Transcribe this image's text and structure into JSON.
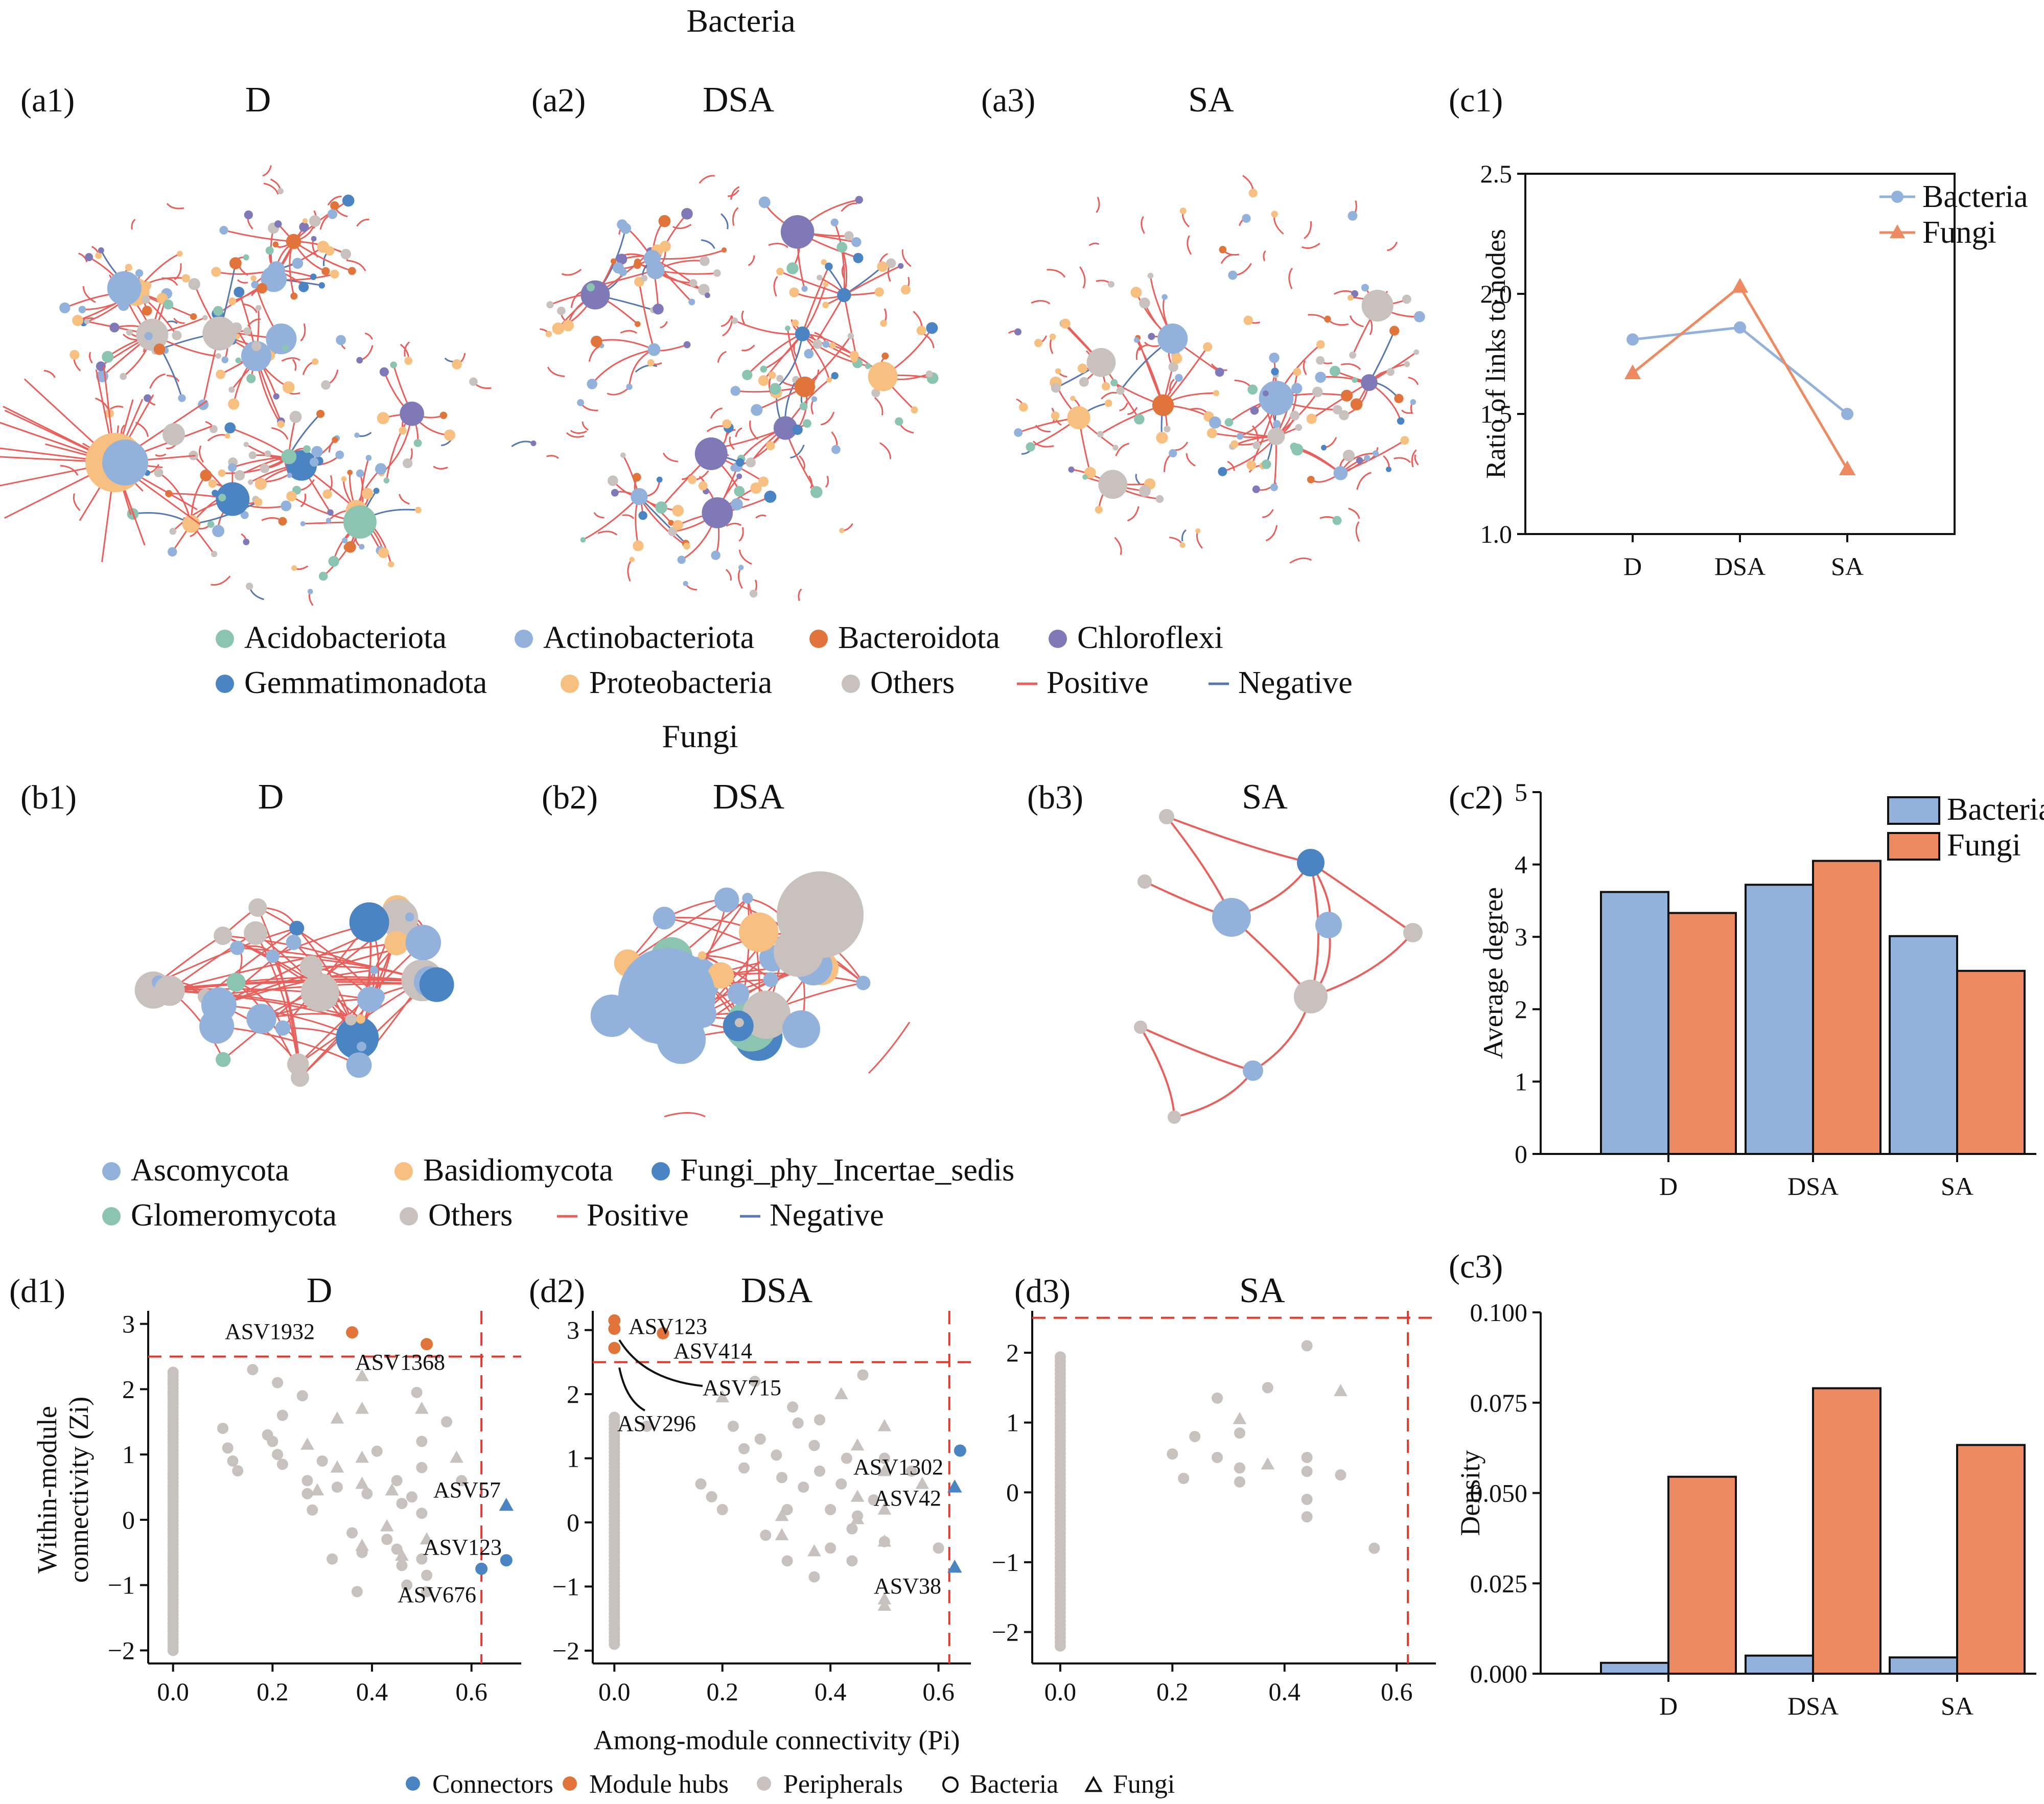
{
  "colors": {
    "bacteria": "#93b2db",
    "fungi": "#ee8a61",
    "connector": "#4a84c2",
    "hub": "#e0743a",
    "peripheral": "#c8c1bd",
    "positive": "#e8605b",
    "negative": "#5677b0",
    "acidobacteriota": "#8bc4b1",
    "actinobacteriota": "#93b2db",
    "bacteroidota": "#e0743a",
    "chloroflexi": "#7f79b8",
    "gemmatimonadota": "#4a84c2",
    "proteobacteria": "#f7bf80",
    "others": "#c8c1bd",
    "ascomycota": "#93b2db",
    "basidiomycota": "#f7bf80",
    "incertae": "#4a84c2",
    "glomeromycota": "#8bc4b1"
  },
  "sections": {
    "bacteria_title": "Bacteria",
    "fungi_title": "Fungi"
  },
  "networks": [
    {
      "id": "a1",
      "label": "(a1)",
      "title": "D"
    },
    {
      "id": "a2",
      "label": "(a2)",
      "title": "DSA"
    },
    {
      "id": "a3",
      "label": "(a3)",
      "title": "SA"
    },
    {
      "id": "b1",
      "label": "(b1)",
      "title": "D"
    },
    {
      "id": "b2",
      "label": "(b2)",
      "title": "DSA"
    },
    {
      "id": "b3",
      "label": "(b3)",
      "title": "SA"
    }
  ],
  "bacteria_legend": [
    {
      "name": "Acidobacteriota",
      "color_key": "acidobacteriota",
      "kind": "dot"
    },
    {
      "name": "Actinobacteriota",
      "color_key": "actinobacteriota",
      "kind": "dot"
    },
    {
      "name": "Bacteroidota",
      "color_key": "bacteroidota",
      "kind": "dot"
    },
    {
      "name": "Chloroflexi",
      "color_key": "chloroflexi",
      "kind": "dot"
    },
    {
      "name": "Gemmatimonadota",
      "color_key": "gemmatimonadota",
      "kind": "dot"
    },
    {
      "name": "Proteobacteria",
      "color_key": "proteobacteria",
      "kind": "dot"
    },
    {
      "name": "Others",
      "color_key": "others",
      "kind": "dot"
    },
    {
      "name": "Positive",
      "color_key": "positive",
      "kind": "line"
    },
    {
      "name": "Negative",
      "color_key": "negative",
      "kind": "line"
    }
  ],
  "fungi_legend": [
    {
      "name": "Ascomycota",
      "color_key": "ascomycota",
      "kind": "dot"
    },
    {
      "name": "Basidiomycota",
      "color_key": "basidiomycota",
      "kind": "dot"
    },
    {
      "name": "Fungi_phy_Incertae_sedis",
      "color_key": "incertae",
      "kind": "dot"
    },
    {
      "name": "Glomeromycota",
      "color_key": "glomeromycota",
      "kind": "dot"
    },
    {
      "name": "Others",
      "color_key": "others",
      "kind": "dot"
    },
    {
      "name": "Positive",
      "color_key": "positive",
      "kind": "line"
    },
    {
      "name": "Negative",
      "color_key": "negative",
      "kind": "line"
    }
  ],
  "zipi_legend": [
    {
      "name": "Connectors",
      "kind": "dot",
      "color_key": "connector"
    },
    {
      "name": "Module hubs",
      "kind": "dot",
      "color_key": "hub"
    },
    {
      "name": "Peripherals",
      "kind": "dot",
      "color_key": "peripheral"
    },
    {
      "name": "Bacteria",
      "kind": "circle"
    },
    {
      "name": "Fungi",
      "kind": "triangle"
    }
  ],
  "chart_data": [
    {
      "id": "c1",
      "label": "(c1)",
      "type": "line",
      "categories": [
        "D",
        "DSA",
        "SA"
      ],
      "series": [
        {
          "name": "Bacteria",
          "values": [
            1.81,
            1.86,
            1.5
          ],
          "marker": "circle",
          "color_key": "bacteria"
        },
        {
          "name": "Fungi",
          "values": [
            1.67,
            2.03,
            1.27
          ],
          "marker": "triangle",
          "color_key": "fungi"
        }
      ],
      "ylabel": "Ratio of links to nodes",
      "ylim": [
        1.0,
        2.5
      ],
      "yticks": [
        1.0,
        1.5,
        2.0,
        2.5
      ],
      "ytick_labels": [
        "1.0",
        "1.5",
        "2.0",
        "2.5"
      ],
      "legend": "top-right"
    },
    {
      "id": "c2",
      "label": "(c2)",
      "type": "bar",
      "categories": [
        "D",
        "DSA",
        "SA"
      ],
      "series": [
        {
          "name": "Bacteria",
          "values": [
            3.62,
            3.72,
            3.01
          ],
          "color_key": "bacteria"
        },
        {
          "name": "Fungi",
          "values": [
            3.33,
            4.05,
            2.53
          ],
          "color_key": "fungi"
        }
      ],
      "ylabel": "Average degree",
      "ylim": [
        0,
        5
      ],
      "yticks": [
        0,
        1,
        2,
        3,
        4,
        5
      ],
      "ytick_labels": [
        "0",
        "1",
        "2",
        "3",
        "4",
        "5"
      ],
      "legend": "top-right"
    },
    {
      "id": "c3",
      "label": "(c3)",
      "type": "bar",
      "categories": [
        "D",
        "DSA",
        "SA"
      ],
      "series": [
        {
          "name": "Bacteria",
          "values": [
            0.003,
            0.005,
            0.0045
          ],
          "color_key": "bacteria"
        },
        {
          "name": "Fungi",
          "values": [
            0.0545,
            0.079,
            0.0633
          ],
          "color_key": "fungi"
        }
      ],
      "ylabel": "Density",
      "ylim": [
        0,
        0.1
      ],
      "yticks": [
        0,
        0.025,
        0.05,
        0.075,
        0.1
      ],
      "ytick_labels": [
        "0.000",
        "0.025",
        "0.050",
        "0.075",
        "0.100"
      ]
    },
    {
      "id": "d1",
      "label": "(d1)",
      "title": "D",
      "type": "scatter",
      "xlim": [
        -0.05,
        0.7
      ],
      "ylim": [
        -2.2,
        3.2
      ],
      "xticks": [
        0,
        0.2,
        0.4,
        0.6
      ],
      "xtick_labels": [
        "0.0",
        "0.2",
        "0.4",
        "0.6"
      ],
      "yticks": [
        -2,
        -1,
        0,
        1,
        2,
        3
      ],
      "ytick_labels": [
        "−2",
        "−1",
        "0",
        "1",
        "2",
        "3"
      ],
      "xlabel": "",
      "ylabel": "Within-module connectivity (Zi)",
      "ylabel_lines": [
        "Within-module",
        "connectivity (Zi)"
      ],
      "thresholds": {
        "zi": 2.5,
        "pi": 0.62
      },
      "highlighted": [
        {
          "name": "ASV1932",
          "pi": 0.36,
          "zi": 2.87,
          "role": "hub",
          "taxon": "bacteria"
        },
        {
          "name": "ASV1368",
          "pi": 0.51,
          "zi": 2.69,
          "role": "hub",
          "taxon": "bacteria"
        },
        {
          "name": "ASV57",
          "pi": 0.67,
          "zi": 0.22,
          "role": "connector",
          "taxon": "fungi"
        },
        {
          "name": "ASV123",
          "pi": 0.67,
          "zi": -0.62,
          "role": "connector",
          "taxon": "bacteria"
        },
        {
          "name": "ASV676",
          "pi": 0.62,
          "zi": -0.75,
          "role": "connector",
          "taxon": "bacteria"
        }
      ],
      "peripherals_bacteria": [
        [
          0.1,
          1.4
        ],
        [
          0.11,
          1.1
        ],
        [
          0.12,
          0.9
        ],
        [
          0.13,
          0.75
        ],
        [
          0.16,
          2.3
        ],
        [
          0.19,
          1.3
        ],
        [
          0.2,
          1.2
        ],
        [
          0.21,
          1.0
        ],
        [
          0.21,
          2.1
        ],
        [
          0.22,
          1.6
        ],
        [
          0.22,
          0.85
        ],
        [
          0.26,
          1.9
        ],
        [
          0.27,
          0.6
        ],
        [
          0.27,
          0.4
        ],
        [
          0.28,
          0.15
        ],
        [
          0.32,
          -0.6
        ],
        [
          0.33,
          0.5
        ],
        [
          0.36,
          -0.2
        ],
        [
          0.37,
          -1.1
        ],
        [
          0.39,
          0.4
        ],
        [
          0.41,
          1.05
        ],
        [
          0.43,
          -0.3
        ],
        [
          0.45,
          0.6
        ],
        [
          0.45,
          -0.45
        ],
        [
          0.46,
          -0.7
        ],
        [
          0.47,
          -1.0
        ],
        [
          0.49,
          1.95
        ],
        [
          0.5,
          1.2
        ],
        [
          0.5,
          0.8
        ],
        [
          0.5,
          0.1
        ],
        [
          0.5,
          -0.6
        ],
        [
          0.51,
          -0.85
        ],
        [
          0.51,
          -1.1
        ],
        [
          0.55,
          1.5
        ],
        [
          0.58,
          0.6
        ],
        [
          0.46,
          0.25
        ],
        [
          0.38,
          -0.5
        ],
        [
          0.48,
          0.35
        ],
        [
          0.3,
          0.9
        ]
      ],
      "peripherals_fungi": [
        [
          0.27,
          1.15
        ],
        [
          0.33,
          1.55
        ],
        [
          0.33,
          0.8
        ],
        [
          0.38,
          2.2
        ],
        [
          0.38,
          1.7
        ],
        [
          0.38,
          0.95
        ],
        [
          0.38,
          0.55
        ],
        [
          0.38,
          -0.4
        ],
        [
          0.46,
          -0.55
        ],
        [
          0.5,
          1.7
        ],
        [
          0.51,
          -0.3
        ],
        [
          0.57,
          0.95
        ],
        [
          0.43,
          -0.1
        ],
        [
          0.29,
          0.45
        ],
        [
          0.44,
          0.45
        ]
      ],
      "peripheral_zero_range": [
        -2.0,
        2.3
      ]
    },
    {
      "id": "d2",
      "label": "(d2)",
      "title": "DSA",
      "type": "scatter",
      "xlim": [
        -0.04,
        0.66
      ],
      "ylim": [
        -2.2,
        3.3
      ],
      "xticks": [
        0,
        0.2,
        0.4,
        0.6
      ],
      "xtick_labels": [
        "0.0",
        "0.2",
        "0.4",
        "0.6"
      ],
      "yticks": [
        -2,
        -1,
        0,
        1,
        2,
        3
      ],
      "ytick_labels": [
        "−2",
        "−1",
        "0",
        "1",
        "2",
        "3"
      ],
      "xlabel": "Among-module connectivity (Pi)",
      "thresholds": {
        "zi": 2.5,
        "pi": 0.62
      },
      "highlighted": [
        {
          "name": "ASV123",
          "pi": 0.0,
          "zi": 3.15,
          "role": "hub",
          "taxon": "bacteria"
        },
        {
          "name": "ASV414",
          "pi": 0.09,
          "zi": 2.95,
          "role": "hub",
          "taxon": "bacteria"
        },
        {
          "name": "ASV715",
          "pi": 0.0,
          "zi": 3.02,
          "role": "hub",
          "taxon": "bacteria"
        },
        {
          "name": "ASV296",
          "pi": 0.0,
          "zi": 2.72,
          "role": "hub",
          "taxon": "bacteria"
        },
        {
          "name": "ASV1302",
          "pi": 0.64,
          "zi": 1.12,
          "role": "connector",
          "taxon": "bacteria"
        },
        {
          "name": "ASV42",
          "pi": 0.63,
          "zi": 0.55,
          "role": "connector",
          "taxon": "fungi"
        },
        {
          "name": "ASV38",
          "pi": 0.63,
          "zi": -0.7,
          "role": "connector",
          "taxon": "fungi"
        }
      ],
      "peripherals_bacteria": [
        [
          0.06,
          1.5
        ],
        [
          0.16,
          0.6
        ],
        [
          0.18,
          0.4
        ],
        [
          0.2,
          0.2
        ],
        [
          0.22,
          1.5
        ],
        [
          0.24,
          1.15
        ],
        [
          0.24,
          0.85
        ],
        [
          0.26,
          2.2
        ],
        [
          0.27,
          1.3
        ],
        [
          0.3,
          1.05
        ],
        [
          0.31,
          0.7
        ],
        [
          0.32,
          0.2
        ],
        [
          0.32,
          -0.6
        ],
        [
          0.33,
          1.8
        ],
        [
          0.35,
          0.55
        ],
        [
          0.37,
          1.2
        ],
        [
          0.37,
          -0.85
        ],
        [
          0.38,
          0.8
        ],
        [
          0.38,
          1.6
        ],
        [
          0.4,
          0.2
        ],
        [
          0.4,
          -0.4
        ],
        [
          0.42,
          0.6
        ],
        [
          0.43,
          1.0
        ],
        [
          0.44,
          -0.1
        ],
        [
          0.44,
          -0.6
        ],
        [
          0.46,
          2.3
        ],
        [
          0.48,
          0.35
        ],
        [
          0.5,
          1.0
        ],
        [
          0.5,
          -0.3
        ],
        [
          0.55,
          0.8
        ],
        [
          0.6,
          -0.4
        ],
        [
          0.28,
          -0.2
        ],
        [
          0.34,
          1.55
        ],
        [
          0.45,
          0.1
        ]
      ],
      "peripherals_fungi": [
        [
          0.2,
          1.95
        ],
        [
          0.31,
          -0.2
        ],
        [
          0.31,
          0.1
        ],
        [
          0.37,
          -0.45
        ],
        [
          0.42,
          2.0
        ],
        [
          0.45,
          1.2
        ],
        [
          0.45,
          0.4
        ],
        [
          0.45,
          0.05
        ],
        [
          0.5,
          1.5
        ],
        [
          0.5,
          0.8
        ],
        [
          0.5,
          0.2
        ],
        [
          0.5,
          -0.3
        ],
        [
          0.5,
          -1.3
        ],
        [
          0.5,
          -1.2
        ],
        [
          0.57,
          0.6
        ]
      ],
      "peripheral_zero_range": [
        -1.9,
        1.65
      ]
    },
    {
      "id": "d3",
      "label": "(d3)",
      "title": "SA",
      "type": "scatter",
      "xlim": [
        -0.05,
        0.67
      ],
      "ylim": [
        -2.45,
        2.6
      ],
      "xticks": [
        0,
        0.2,
        0.4,
        0.6
      ],
      "xtick_labels": [
        "0.0",
        "0.2",
        "0.4",
        "0.6"
      ],
      "yticks": [
        -2,
        -1,
        0,
        1,
        2
      ],
      "ytick_labels": [
        "−2",
        "−1",
        "0",
        "1",
        "2"
      ],
      "xlabel": "",
      "thresholds": {
        "zi": 2.5,
        "pi": 0.62
      },
      "highlighted": [],
      "peripherals_bacteria": [
        [
          0.2,
          0.55
        ],
        [
          0.22,
          0.2
        ],
        [
          0.24,
          0.8
        ],
        [
          0.28,
          1.35
        ],
        [
          0.28,
          0.5
        ],
        [
          0.32,
          0.35
        ],
        [
          0.32,
          0.15
        ],
        [
          0.32,
          0.85
        ],
        [
          0.37,
          1.5
        ],
        [
          0.44,
          2.1
        ],
        [
          0.44,
          0.5
        ],
        [
          0.44,
          0.3
        ],
        [
          0.44,
          -0.1
        ],
        [
          0.44,
          -0.35
        ],
        [
          0.5,
          0.25
        ],
        [
          0.56,
          -0.8
        ]
      ],
      "peripherals_fungi": [
        [
          0.32,
          1.05
        ],
        [
          0.37,
          0.4
        ],
        [
          0.5,
          1.45
        ]
      ],
      "peripheral_zero_range": [
        -2.2,
        2.0
      ]
    }
  ]
}
